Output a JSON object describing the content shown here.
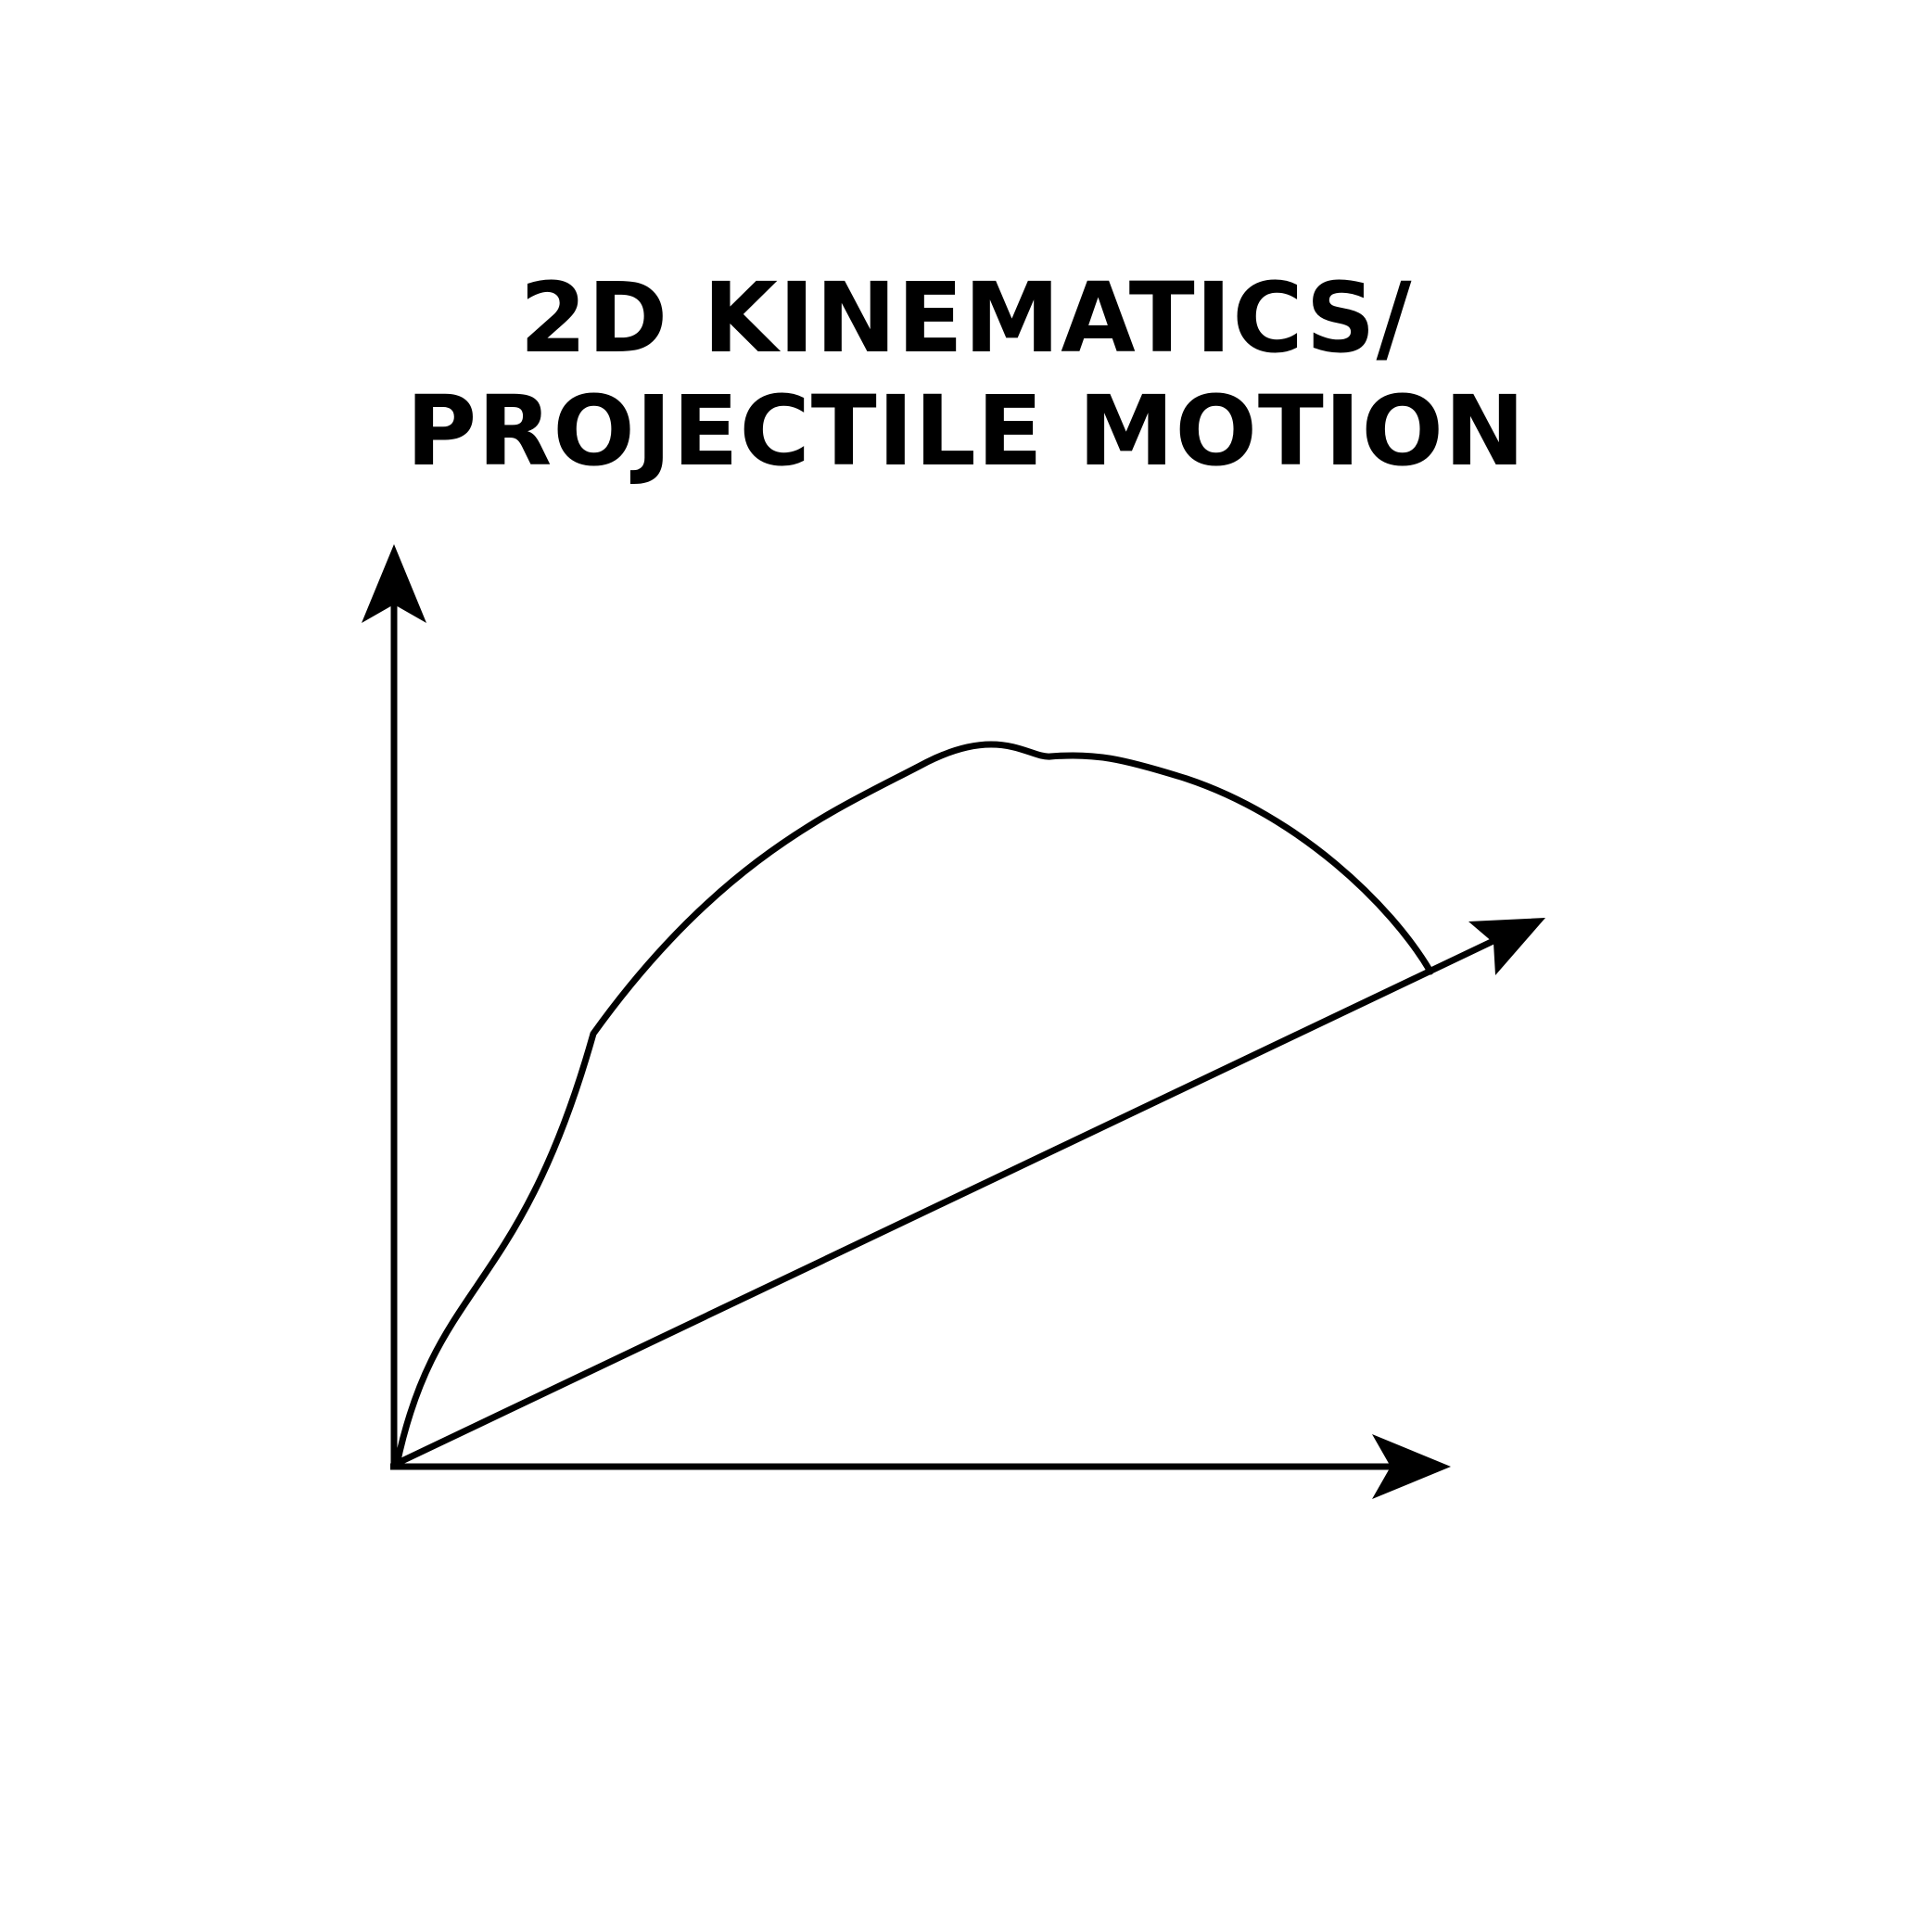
{
  "title": {
    "line1": "2D KINEMATICS/",
    "line2": "PROJECTILE MOTION"
  },
  "colors": {
    "ink": "#000000",
    "background": "#ffffff"
  }
}
